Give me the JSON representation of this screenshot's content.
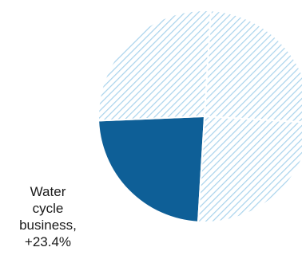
{
  "chart_data": {
    "type": "pie",
    "title": "",
    "slices": [
      {
        "value": 23.4,
        "color": "#0e5f97",
        "fill": "solid"
      },
      {
        "value": 26.6,
        "color": "#a9d3ec",
        "fill": "hatched"
      },
      {
        "value": 25.0,
        "color": "#a9d3ec",
        "fill": "hatched"
      },
      {
        "value": 25.0,
        "color": "#a9d3ec",
        "fill": "hatched"
      }
    ],
    "labels": [
      {
        "slice_index": 0,
        "lines": [
          "Water",
          "cycle",
          "business,",
          "+23.4%"
        ]
      }
    ],
    "legend": "none"
  },
  "colors": {
    "highlight": "#0e5f97",
    "hatch": "#a9d3ec",
    "background": "#ffffff"
  }
}
